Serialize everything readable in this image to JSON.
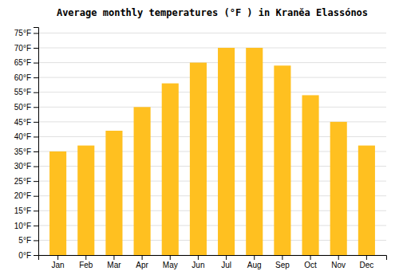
{
  "chart_data": {
    "type": "bar",
    "title": "Average monthly temperatures (°F ) in Kranĕa Elassónos",
    "categories": [
      "Jan",
      "Feb",
      "Mar",
      "Apr",
      "May",
      "Jun",
      "Jul",
      "Aug",
      "Sep",
      "Oct",
      "Nov",
      "Dec"
    ],
    "values": [
      35,
      37,
      42,
      50,
      58,
      65,
      70,
      70,
      64,
      54,
      45,
      37
    ],
    "color": "#FFC020",
    "ylim": [
      0,
      77
    ],
    "yticks": [
      {
        "value": 0,
        "label": "0°F"
      },
      {
        "value": 5,
        "label": "5°F"
      },
      {
        "value": 10,
        "label": "10°F"
      },
      {
        "value": 15,
        "label": "15°F"
      },
      {
        "value": 20,
        "label": "20°F"
      },
      {
        "value": 25,
        "label": "25°F"
      },
      {
        "value": 30,
        "label": "30°F"
      },
      {
        "value": 35,
        "label": "35°F"
      },
      {
        "value": 40,
        "label": "40°F"
      },
      {
        "value": 45,
        "label": "45°F"
      },
      {
        "value": 50,
        "label": "50°F"
      },
      {
        "value": 55,
        "label": "55°F"
      },
      {
        "value": 60,
        "label": "60°F"
      },
      {
        "value": 65,
        "label": "65°F"
      },
      {
        "value": 70,
        "label": "70°F"
      },
      {
        "value": 75,
        "label": "75°F"
      }
    ],
    "grid": true
  }
}
